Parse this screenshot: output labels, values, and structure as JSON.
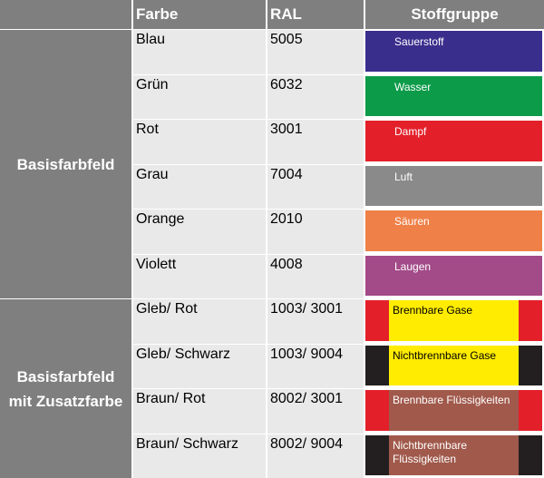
{
  "table": {
    "headers": {
      "farbe": "Farbe",
      "ral": "RAL",
      "stoffgruppe": "Stoffgruppe"
    },
    "groups": [
      {
        "label_lines": [
          "Basisfarbfeld"
        ]
      },
      {
        "label_lines": [
          "Basisfarbfeld",
          "mit Zusatzfarbe"
        ]
      }
    ],
    "rows": [
      {
        "farbe": "Blau",
        "ral": "5005",
        "stoffgruppe": "Sauerstoff",
        "color": "#3a2e8d",
        "text_color": "#ffffff"
      },
      {
        "farbe": "Grün",
        "ral": "6032",
        "stoffgruppe": "Wasser",
        "color": "#0c9b49",
        "text_color": "#ffffff"
      },
      {
        "farbe": "Rot",
        "ral": "3001",
        "stoffgruppe": "Dampf",
        "color": "#e3202a",
        "text_color": "#ffffff"
      },
      {
        "farbe": "Grau",
        "ral": "7004",
        "stoffgruppe": "Luft",
        "color": "#8a8a8a",
        "text_color": "#ffffff"
      },
      {
        "farbe": "Orange",
        "ral": "2010",
        "stoffgruppe": "Säuren",
        "color": "#ef8048",
        "text_color": "#ffffff"
      },
      {
        "farbe": "Violett",
        "ral": "4008",
        "stoffgruppe": "Laugen",
        "color": "#a34a89",
        "text_color": "#ffffff"
      },
      {
        "farbe": "Gleb/ Rot",
        "ral": "1003/ 3001",
        "stoffgruppe": "Brennbare Gase",
        "color": "#ffec00",
        "stripe_color": "#e3202a",
        "text_color": "#000000"
      },
      {
        "farbe": "Gleb/ Schwarz",
        "ral": "1003/ 9004",
        "stoffgruppe": "Nichtbrennbare Gase",
        "color": "#ffec00",
        "stripe_color": "#231f20",
        "text_color": "#000000"
      },
      {
        "farbe": "Braun/ Rot",
        "ral": "8002/ 3001",
        "stoffgruppe": "Brennbare Flüssigkeiten",
        "color": "#a0594b",
        "stripe_color": "#e3202a",
        "text_color": "#ffffff"
      },
      {
        "farbe": "Braun/ Schwarz",
        "ral": "8002/ 9004",
        "stoffgruppe": "Nichtbrennbare Flüssigkeiten",
        "color": "#a0594b",
        "stripe_color": "#231f20",
        "text_color": "#ffffff"
      }
    ]
  }
}
